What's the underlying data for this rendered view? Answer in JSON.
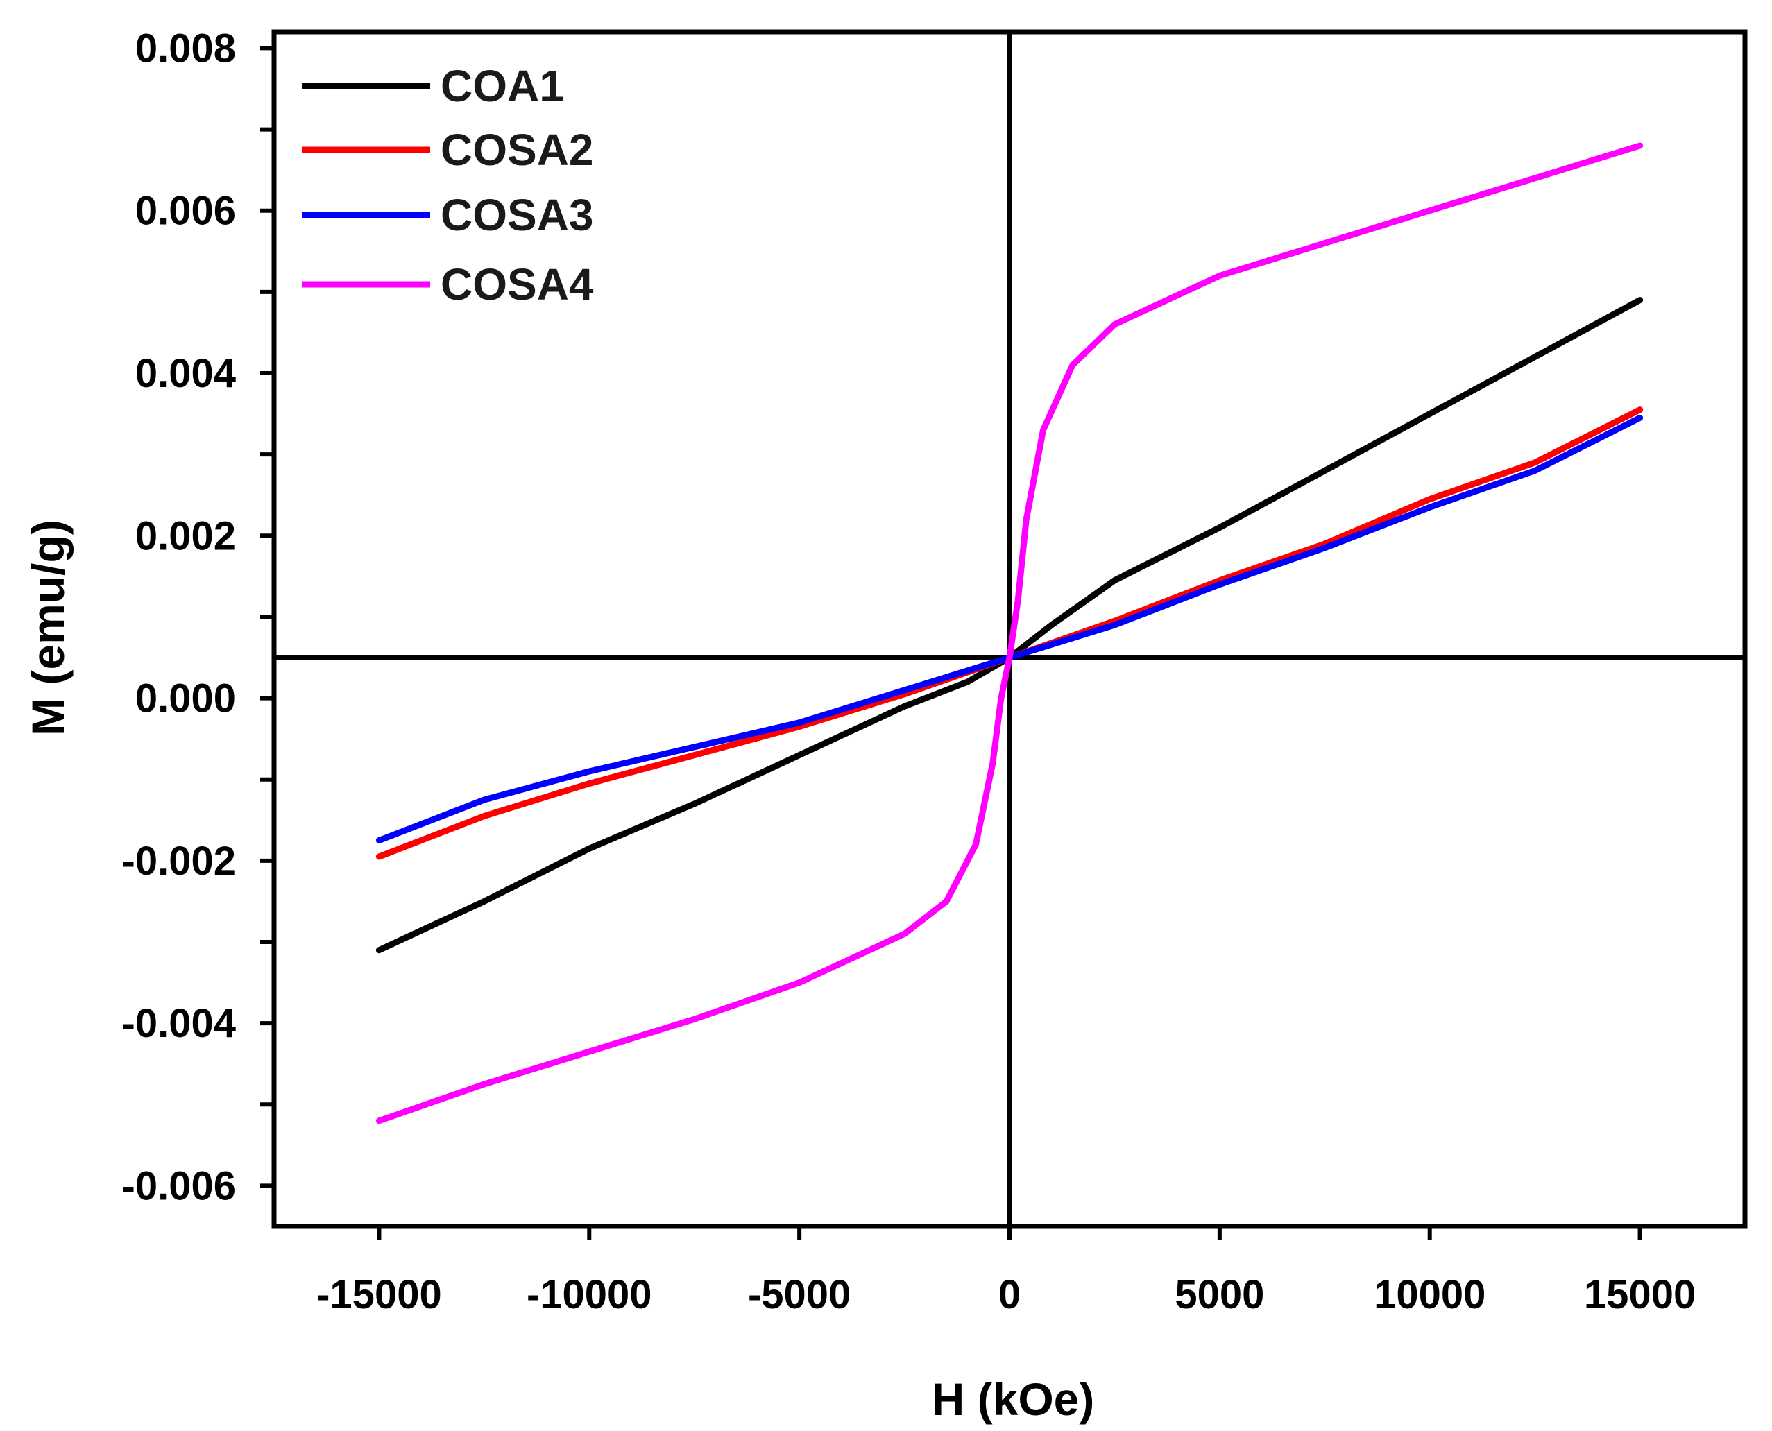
{
  "chart_data": {
    "type": "line",
    "title": "",
    "xlabel": "H (kOe)",
    "ylabel": "M (emu/g)",
    "xlim": [
      -17500,
      17500
    ],
    "ylim": [
      -0.0065,
      0.0082
    ],
    "xticks": [
      -15000,
      -10000,
      -5000,
      0,
      5000,
      10000,
      15000
    ],
    "xtick_labels": [
      "-15000",
      "-10000",
      "-5000",
      "0",
      "5000",
      "10000",
      "15000"
    ],
    "yticks": [
      -0.006,
      -0.004,
      -0.002,
      0.0,
      0.002,
      0.004,
      0.006,
      0.008
    ],
    "ytick_labels": [
      "-0.006",
      "-0.004",
      "-0.002",
      "0.000",
      "0.002",
      "0.004",
      "0.006",
      "0.008"
    ],
    "crosshair": {
      "x": 0,
      "y": 0.0005
    },
    "legend_position": "top-left",
    "series": [
      {
        "name": "COA1",
        "color": "#000000",
        "x": [
          -15000,
          -12500,
          -10000,
          -7500,
          -5000,
          -2500,
          -1000,
          0,
          1000,
          2500,
          5000,
          7500,
          10000,
          12500,
          15000
        ],
        "y": [
          -0.0031,
          -0.0025,
          -0.00185,
          -0.0013,
          -0.0007,
          -0.0001,
          0.0002,
          0.0005,
          0.0009,
          0.00145,
          0.0021,
          0.0028,
          0.0035,
          0.0042,
          0.0049
        ]
      },
      {
        "name": "COSA2",
        "color": "#ff0000",
        "x": [
          -15000,
          -12500,
          -10000,
          -7500,
          -5000,
          -2500,
          0,
          2500,
          5000,
          7500,
          10000,
          12500,
          15000
        ],
        "y": [
          -0.00195,
          -0.00145,
          -0.00105,
          -0.0007,
          -0.00035,
          5e-05,
          0.0005,
          0.00095,
          0.00145,
          0.0019,
          0.00245,
          0.0029,
          0.00355
        ]
      },
      {
        "name": "COSA3",
        "color": "#0000ff",
        "x": [
          -15000,
          -12500,
          -10000,
          -7500,
          -5000,
          -2500,
          0,
          2500,
          5000,
          7500,
          10000,
          12500,
          15000
        ],
        "y": [
          -0.00175,
          -0.00125,
          -0.0009,
          -0.0006,
          -0.0003,
          0.0001,
          0.0005,
          0.0009,
          0.0014,
          0.00185,
          0.00235,
          0.0028,
          0.00345
        ]
      },
      {
        "name": "COSA4",
        "color": "#ff00ff",
        "x": [
          -15000,
          -12500,
          -10000,
          -7500,
          -5000,
          -2500,
          -1500,
          -800,
          -400,
          -200,
          0,
          200,
          400,
          800,
          1500,
          2500,
          5000,
          7500,
          10000,
          12500,
          15000
        ],
        "y": [
          -0.0052,
          -0.00475,
          -0.00435,
          -0.00395,
          -0.0035,
          -0.0029,
          -0.0025,
          -0.0018,
          -0.0008,
          0.0,
          0.0005,
          0.0012,
          0.0022,
          0.0033,
          0.0041,
          0.0046,
          0.0052,
          0.0056,
          0.006,
          0.0064,
          0.0068
        ]
      }
    ]
  }
}
